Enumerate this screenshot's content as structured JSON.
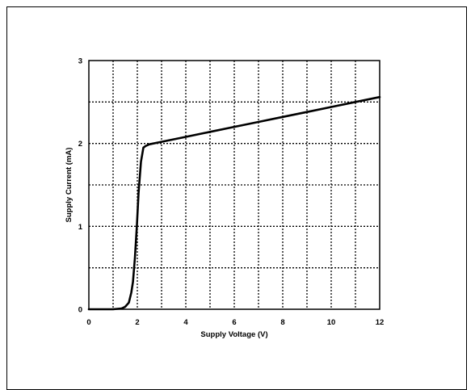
{
  "chart_data": {
    "type": "line",
    "xlabel": "Supply Voltage  (V)",
    "ylabel": "Supply Current  (mA)",
    "xlim": [
      0,
      12
    ],
    "ylim": [
      0,
      3
    ],
    "x_ticks": [
      "0",
      "2",
      "4",
      "6",
      "8",
      "10",
      "12"
    ],
    "y_ticks": [
      "0",
      "1",
      "2",
      "3"
    ],
    "grid": true,
    "series": [
      {
        "x": [
          0,
          1.0,
          1.35,
          1.5,
          1.65,
          1.75,
          1.82,
          1.9,
          1.98,
          2.05,
          2.15,
          2.25,
          2.35,
          2.5,
          3.0,
          4.0,
          5.0,
          6.0,
          7.0,
          8.0,
          9.0,
          10.0,
          11.0,
          12.0
        ],
        "y": [
          0,
          0.0,
          0.01,
          0.03,
          0.08,
          0.2,
          0.33,
          0.62,
          1.0,
          1.4,
          1.78,
          1.95,
          1.97,
          1.99,
          2.02,
          2.08,
          2.14,
          2.2,
          2.26,
          2.32,
          2.38,
          2.44,
          2.5,
          2.56
        ]
      }
    ]
  }
}
